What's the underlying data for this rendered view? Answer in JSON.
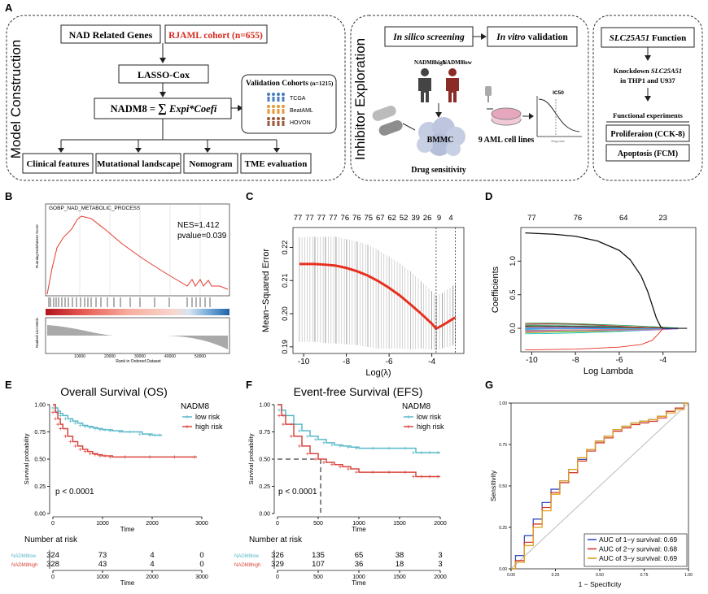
{
  "panel_letters": [
    "A",
    "B",
    "C",
    "D",
    "E",
    "F",
    "G"
  ],
  "model": {
    "title": "Model Construction",
    "nad_genes": "NAD Related Genes",
    "cohort": "RJAML cohort (n=655)",
    "lasso": "LASSO-Cox",
    "formula_lhs": "NADM8 = ",
    "formula_sum": "∑",
    "formula_rhs": " Expi*Coefi",
    "validation_title": "Validation Cohorts",
    "validation_n": "(n=1215)",
    "validation_items": [
      "TCGA",
      "BeatAML",
      "HOVON"
    ],
    "outputs": [
      "Clinical features",
      "Mutational landscape",
      "Nomogram",
      "TME evaluation"
    ]
  },
  "inhibitor": {
    "title": "Inhibitor Exploration",
    "silico": "In silico screening",
    "vitro_italic": "In vitro",
    "vitro_rest": " validation",
    "nadm_high": "NADM8high",
    "nadm_low": "NADM8low",
    "bmmc": "BMMC",
    "drug": "Drug sensitivity",
    "cell_lines": "9 AML cell lines",
    "ic50": "IC50",
    "drug_conc": "Drug conc."
  },
  "function_box": {
    "title_italic": "SLC25A51",
    "title_rest": " Function",
    "knock1_pre": "Knockdown ",
    "knock1_gene": "SLC25A51",
    "knock2": "in THP1 and U937",
    "experiments": "Functional experiments",
    "prolif": "Proliferaion (CCK-8)",
    "apop": "Apoptosis (FCM)"
  },
  "gsea": {
    "title": "GOBP_NAD_METABOLIC_PROCESS",
    "nes": "NES=1.412",
    "pvalue": "pvalue=0.039",
    "ylabel_top": "Running Enrichment Score",
    "ylabel_bottom": "Ranked List Metric",
    "xlabel": "Rank in Ordered Dataset",
    "xticks": [
      "10000",
      "20000",
      "30000",
      "40000",
      "50000"
    ]
  },
  "chart_data": [
    {
      "id": "C",
      "type": "line",
      "title": "",
      "xlabel": "Log(λ)",
      "ylabel": "Mean−Squared Error",
      "xlim": [
        -10.5,
        -2.5
      ],
      "ylim": [
        0.188,
        0.226
      ],
      "xticks": [
        -10,
        -8,
        -6,
        -4
      ],
      "yticks": [
        0.19,
        0.2,
        0.21,
        0.22
      ],
      "top_counts": [
        "77",
        "77",
        "77",
        "77",
        "76",
        "76",
        "75",
        "67",
        "62",
        "52",
        "39",
        "26",
        "9",
        "4"
      ],
      "vlines": [
        -3.8,
        -2.9
      ],
      "x": [
        -10.2,
        -9.5,
        -9,
        -8.5,
        -8,
        -7.5,
        -7,
        -6.5,
        -6,
        -5.5,
        -5,
        -4.5,
        -4,
        -3.8,
        -3.5,
        -3,
        -2.9
      ],
      "y": [
        0.215,
        0.215,
        0.2148,
        0.2145,
        0.2138,
        0.2128,
        0.2115,
        0.2098,
        0.2078,
        0.2055,
        0.2028,
        0.2,
        0.197,
        0.1955,
        0.1965,
        0.1985,
        0.1988
      ],
      "err_upper": [
        0.223,
        0.2232,
        0.2232,
        0.2232,
        0.2225,
        0.2218,
        0.2208,
        0.2192,
        0.2172,
        0.2152,
        0.2128,
        0.2098,
        0.2068,
        0.2055,
        0.2062,
        0.2085,
        0.2088
      ],
      "err_lower": [
        0.1915,
        0.1915,
        0.1912,
        0.191,
        0.1908,
        0.1905,
        0.19,
        0.1895,
        0.1895,
        0.1895,
        0.1892,
        0.1895,
        0.1892,
        0.189,
        0.1895,
        0.1905,
        0.191
      ]
    },
    {
      "id": "D",
      "type": "line",
      "xlabel": "Log Lambda",
      "ylabel": "Coefficients",
      "xlim": [
        -10.5,
        -2.5
      ],
      "ylim": [
        -0.35,
        1.5
      ],
      "xticks": [
        -10,
        -8,
        -6,
        -4
      ],
      "yticks": [
        0.0,
        0.5,
        1.0
      ],
      "top_counts": [
        "77",
        "76",
        "64",
        "23"
      ],
      "top_count_x": [
        -10,
        -7.9,
        -5.8,
        -4
      ],
      "big_coef_x": [
        -10.3,
        -9,
        -8,
        -7,
        -6,
        -5.5,
        -5,
        -4.7,
        -4.5,
        -4.3,
        -4.1,
        -4
      ],
      "big_coef_y": [
        1.42,
        1.4,
        1.37,
        1.3,
        1.16,
        1.02,
        0.78,
        0.55,
        0.35,
        0.15,
        0.02,
        0
      ]
    },
    {
      "id": "E",
      "type": "line",
      "title": "Overall Survival (OS)",
      "xlabel": "Time",
      "ylabel": "Survival probability",
      "legend_title": "NADM8",
      "xlim": [
        0,
        3000
      ],
      "ylim": [
        0,
        1
      ],
      "xticks": [
        0,
        1000,
        2000,
        3000
      ],
      "yticks": [
        "0.00",
        "0.25",
        "0.50",
        "0.75",
        "1.00"
      ],
      "pvalue": "p < 0.0001",
      "series": [
        {
          "name": "low risk",
          "color": "#58b8c9",
          "x": [
            0,
            50,
            100,
            150,
            200,
            300,
            400,
            500,
            600,
            700,
            800,
            900,
            1000,
            1100,
            1200,
            1400,
            1600,
            1800,
            2000,
            2100,
            2200
          ],
          "y": [
            1,
            0.97,
            0.94,
            0.92,
            0.9,
            0.87,
            0.85,
            0.83,
            0.81,
            0.8,
            0.79,
            0.78,
            0.77,
            0.77,
            0.76,
            0.75,
            0.75,
            0.73,
            0.72,
            0.72,
            0.72
          ]
        },
        {
          "name": "high risk",
          "color": "#d9453d",
          "x": [
            0,
            50,
            100,
            150,
            200,
            300,
            400,
            500,
            600,
            700,
            800,
            900,
            1000,
            1100,
            1200,
            1500,
            2000,
            2500,
            2900
          ],
          "y": [
            1,
            0.93,
            0.87,
            0.82,
            0.78,
            0.71,
            0.66,
            0.62,
            0.59,
            0.57,
            0.55,
            0.54,
            0.53,
            0.53,
            0.52,
            0.52,
            0.52,
            0.52,
            0.52
          ]
        }
      ],
      "risk_title": "Number at risk",
      "risk_labels": [
        "NADM8low",
        "NADM8high"
      ],
      "risk_rows": [
        [
          "324",
          "73",
          "4",
          "0"
        ],
        [
          "328",
          "43",
          "4",
          "0"
        ]
      ],
      "risk_xticks": [
        "0",
        "1000",
        "2000",
        "3000"
      ]
    },
    {
      "id": "F",
      "type": "line",
      "title": "Event-free Survival (EFS)",
      "xlabel": "Time",
      "ylabel": "Survival probability",
      "legend_title": "NADM8",
      "xlim": [
        0,
        2000
      ],
      "ylim": [
        0,
        1
      ],
      "xticks": [
        0,
        500,
        1000,
        1500,
        2000
      ],
      "yticks": [
        "0.00",
        "0.25",
        "0.50",
        "0.75",
        "1.00"
      ],
      "pvalue": "p < 0.0001",
      "median_x": 530,
      "series": [
        {
          "name": "low risk",
          "color": "#58b8c9",
          "x": [
            0,
            50,
            100,
            200,
            300,
            400,
            500,
            600,
            700,
            800,
            900,
            1000,
            1200,
            1400,
            1600,
            1700,
            1800,
            1900,
            2000
          ],
          "y": [
            1,
            0.95,
            0.9,
            0.82,
            0.76,
            0.71,
            0.68,
            0.65,
            0.63,
            0.62,
            0.61,
            0.6,
            0.6,
            0.6,
            0.6,
            0.56,
            0.56,
            0.56,
            0.56
          ]
        },
        {
          "name": "high risk",
          "color": "#d9453d",
          "x": [
            0,
            50,
            100,
            200,
            300,
            400,
            500,
            600,
            700,
            800,
            900,
            1000,
            1200,
            1400,
            1600,
            1700,
            1800,
            1900,
            2000
          ],
          "y": [
            1,
            0.9,
            0.82,
            0.71,
            0.62,
            0.55,
            0.5,
            0.47,
            0.45,
            0.43,
            0.41,
            0.38,
            0.38,
            0.38,
            0.38,
            0.34,
            0.34,
            0.34,
            0.34
          ]
        }
      ],
      "risk_title": "Number at risk",
      "risk_labels": [
        "NADM8low",
        "NADM8high"
      ],
      "risk_rows": [
        [
          "326",
          "135",
          "65",
          "38",
          "3"
        ],
        [
          "329",
          "107",
          "36",
          "18",
          "3"
        ]
      ],
      "risk_xticks": [
        "0",
        "500",
        "1000",
        "1500",
        "2000"
      ]
    },
    {
      "id": "G",
      "type": "line",
      "xlabel": "1 − Specificity",
      "ylabel": "Sensitivity",
      "xlim": [
        0,
        1
      ],
      "ylim": [
        0,
        1
      ],
      "xticks": [
        "0.00",
        "0.25",
        "0.50",
        "0.75",
        "1.00"
      ],
      "yticks": [
        "0.00",
        "0.25",
        "0.50",
        "0.75",
        "1.00"
      ],
      "series": [
        {
          "name": "AUC of 1−y survival: 0.69",
          "color": "#3a4fbf",
          "x": [
            0,
            0.05,
            0.1,
            0.15,
            0.2,
            0.25,
            0.3,
            0.35,
            0.4,
            0.45,
            0.5,
            0.55,
            0.6,
            0.65,
            0.7,
            0.75,
            0.8,
            0.85,
            0.9,
            0.95,
            1
          ],
          "y": [
            0,
            0.08,
            0.2,
            0.3,
            0.4,
            0.48,
            0.53,
            0.6,
            0.66,
            0.72,
            0.77,
            0.8,
            0.84,
            0.86,
            0.88,
            0.89,
            0.9,
            0.92,
            0.95,
            0.97,
            1
          ]
        },
        {
          "name": "AUC of 2−y survival: 0.68",
          "color": "#d23b2e",
          "x": [
            0,
            0.05,
            0.1,
            0.15,
            0.2,
            0.25,
            0.3,
            0.35,
            0.4,
            0.45,
            0.5,
            0.55,
            0.6,
            0.65,
            0.7,
            0.75,
            0.8,
            0.85,
            0.9,
            0.95,
            1
          ],
          "y": [
            0,
            0.05,
            0.16,
            0.27,
            0.37,
            0.46,
            0.52,
            0.58,
            0.65,
            0.71,
            0.76,
            0.79,
            0.83,
            0.85,
            0.87,
            0.88,
            0.89,
            0.91,
            0.95,
            0.97,
            1
          ]
        },
        {
          "name": "AUC of 3−y survival: 0.69",
          "color": "#e0a21e",
          "x": [
            0,
            0.05,
            0.1,
            0.15,
            0.2,
            0.25,
            0.3,
            0.35,
            0.4,
            0.45,
            0.5,
            0.55,
            0.6,
            0.65,
            0.7,
            0.75,
            0.8,
            0.85,
            0.9,
            0.95,
            1
          ],
          "y": [
            0,
            0.04,
            0.14,
            0.25,
            0.35,
            0.45,
            0.53,
            0.6,
            0.67,
            0.72,
            0.77,
            0.8,
            0.84,
            0.86,
            0.88,
            0.89,
            0.9,
            0.92,
            0.94,
            0.96,
            1
          ]
        }
      ]
    }
  ]
}
